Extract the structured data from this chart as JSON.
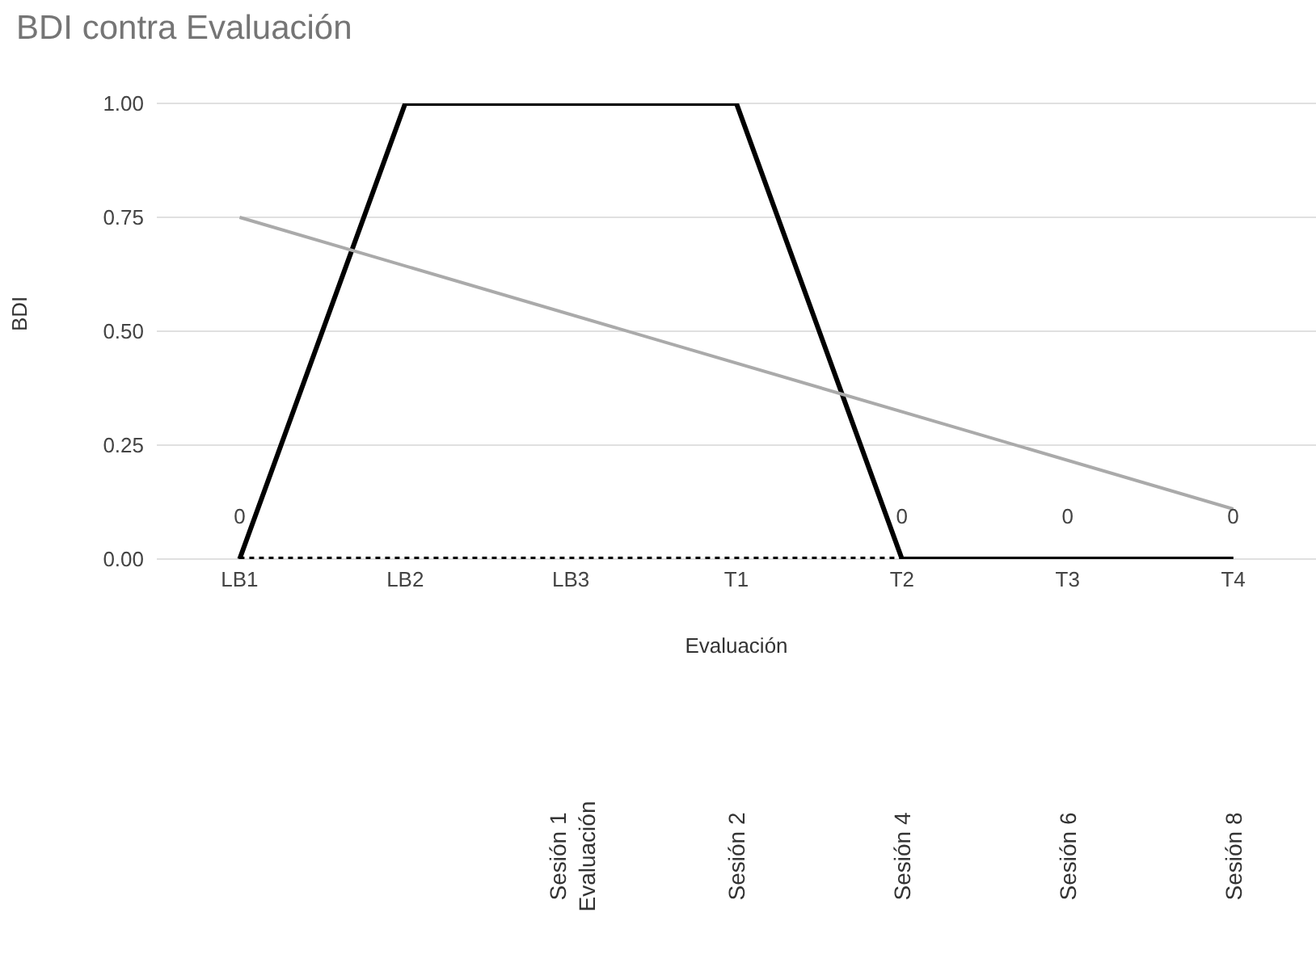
{
  "chart_data": {
    "type": "line",
    "title": "BDI contra Evaluación",
    "xlabel": "Evaluación",
    "ylabel": "BDI",
    "categories": [
      "LB1",
      "LB2",
      "LB3",
      "T1",
      "T2",
      "T3",
      "T4"
    ],
    "series": [
      {
        "color": "#000000",
        "values": [
          0,
          1,
          1,
          1,
          0,
          0,
          0
        ],
        "value_labels": [
          "0",
          null,
          null,
          null,
          "0",
          "0",
          "0"
        ]
      },
      {
        "color": "#000000",
        "values": [
          0,
          0,
          0,
          0,
          0,
          0,
          0
        ],
        "line_style": "dotted"
      },
      {
        "color": "#aaaaaa",
        "x": [
          "LB1",
          "T4"
        ],
        "values": [
          0.75,
          0.11
        ]
      }
    ],
    "ylim": [
      0,
      1
    ],
    "yticks": [
      {
        "value": 0,
        "label": "0.00"
      },
      {
        "value": 0.25,
        "label": "0.25"
      },
      {
        "value": 0.5,
        "label": "0.50"
      },
      {
        "value": 0.75,
        "label": "0.75"
      },
      {
        "value": 1,
        "label": "1.00"
      }
    ],
    "grid": "y",
    "marker": "none",
    "line_style": "solid",
    "annotations": [
      "Sesión 1\nEvaluación",
      "Sesión 2",
      "Sesión 4",
      "Sesión 6",
      "Sesión 8"
    ]
  }
}
